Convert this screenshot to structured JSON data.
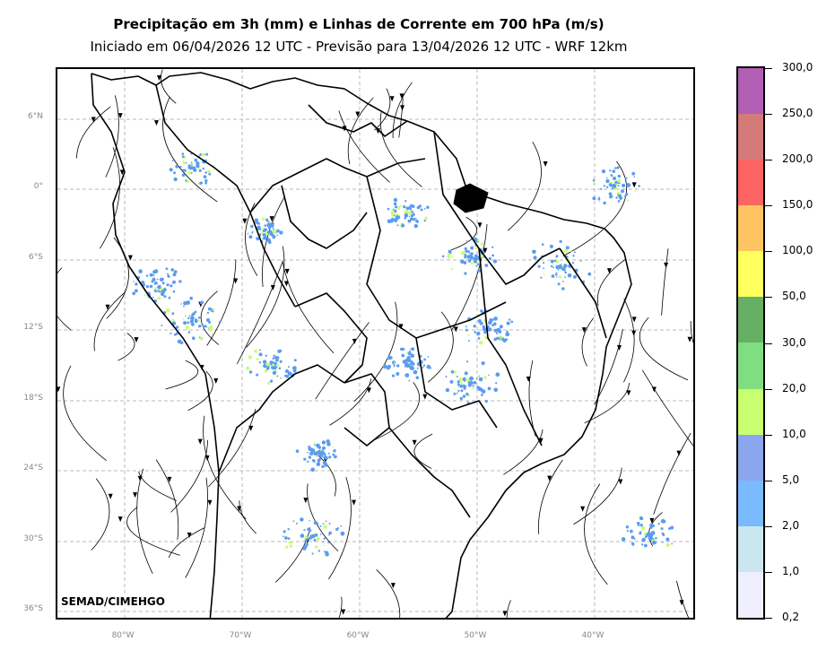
{
  "title_line1": "Precipitação em 3h (mm) e Linhas de Corrente em 700 hPa (m/s)",
  "title_line2": "Iniciado em 06/04/2026 12 UTC - Previsão para 13/04/2026 12 UTC - WRF 12km",
  "credit": "SEMAD/CIMEHGO",
  "lat_labels": [
    "6°N",
    "0°",
    "6°S",
    "12°S",
    "18°S",
    "24°S",
    "30°S",
    "36°S"
  ],
  "lon_labels": [
    "80°W",
    "70°W",
    "60°W",
    "50°W",
    "40°W"
  ],
  "colorbar": {
    "labels": [
      "300,0",
      "250,0",
      "200,0",
      "150,0",
      "100,0",
      "50,0",
      "30,0",
      "20,0",
      "10,0",
      "5,0",
      "2,0",
      "1,0",
      "0,2"
    ],
    "colors": [
      "#b05fb5",
      "#d47a78",
      "#ff6464",
      "#ffc462",
      "#ffff5e",
      "#66b065",
      "#80de80",
      "#c8fe6f",
      "#8ca6ee",
      "#7abaff",
      "#cae6ef",
      "#efefff"
    ]
  },
  "precip_colors": {
    "light": "#5b9cf0",
    "mid": "#c8fe6f",
    "heavy": "#66b065"
  }
}
